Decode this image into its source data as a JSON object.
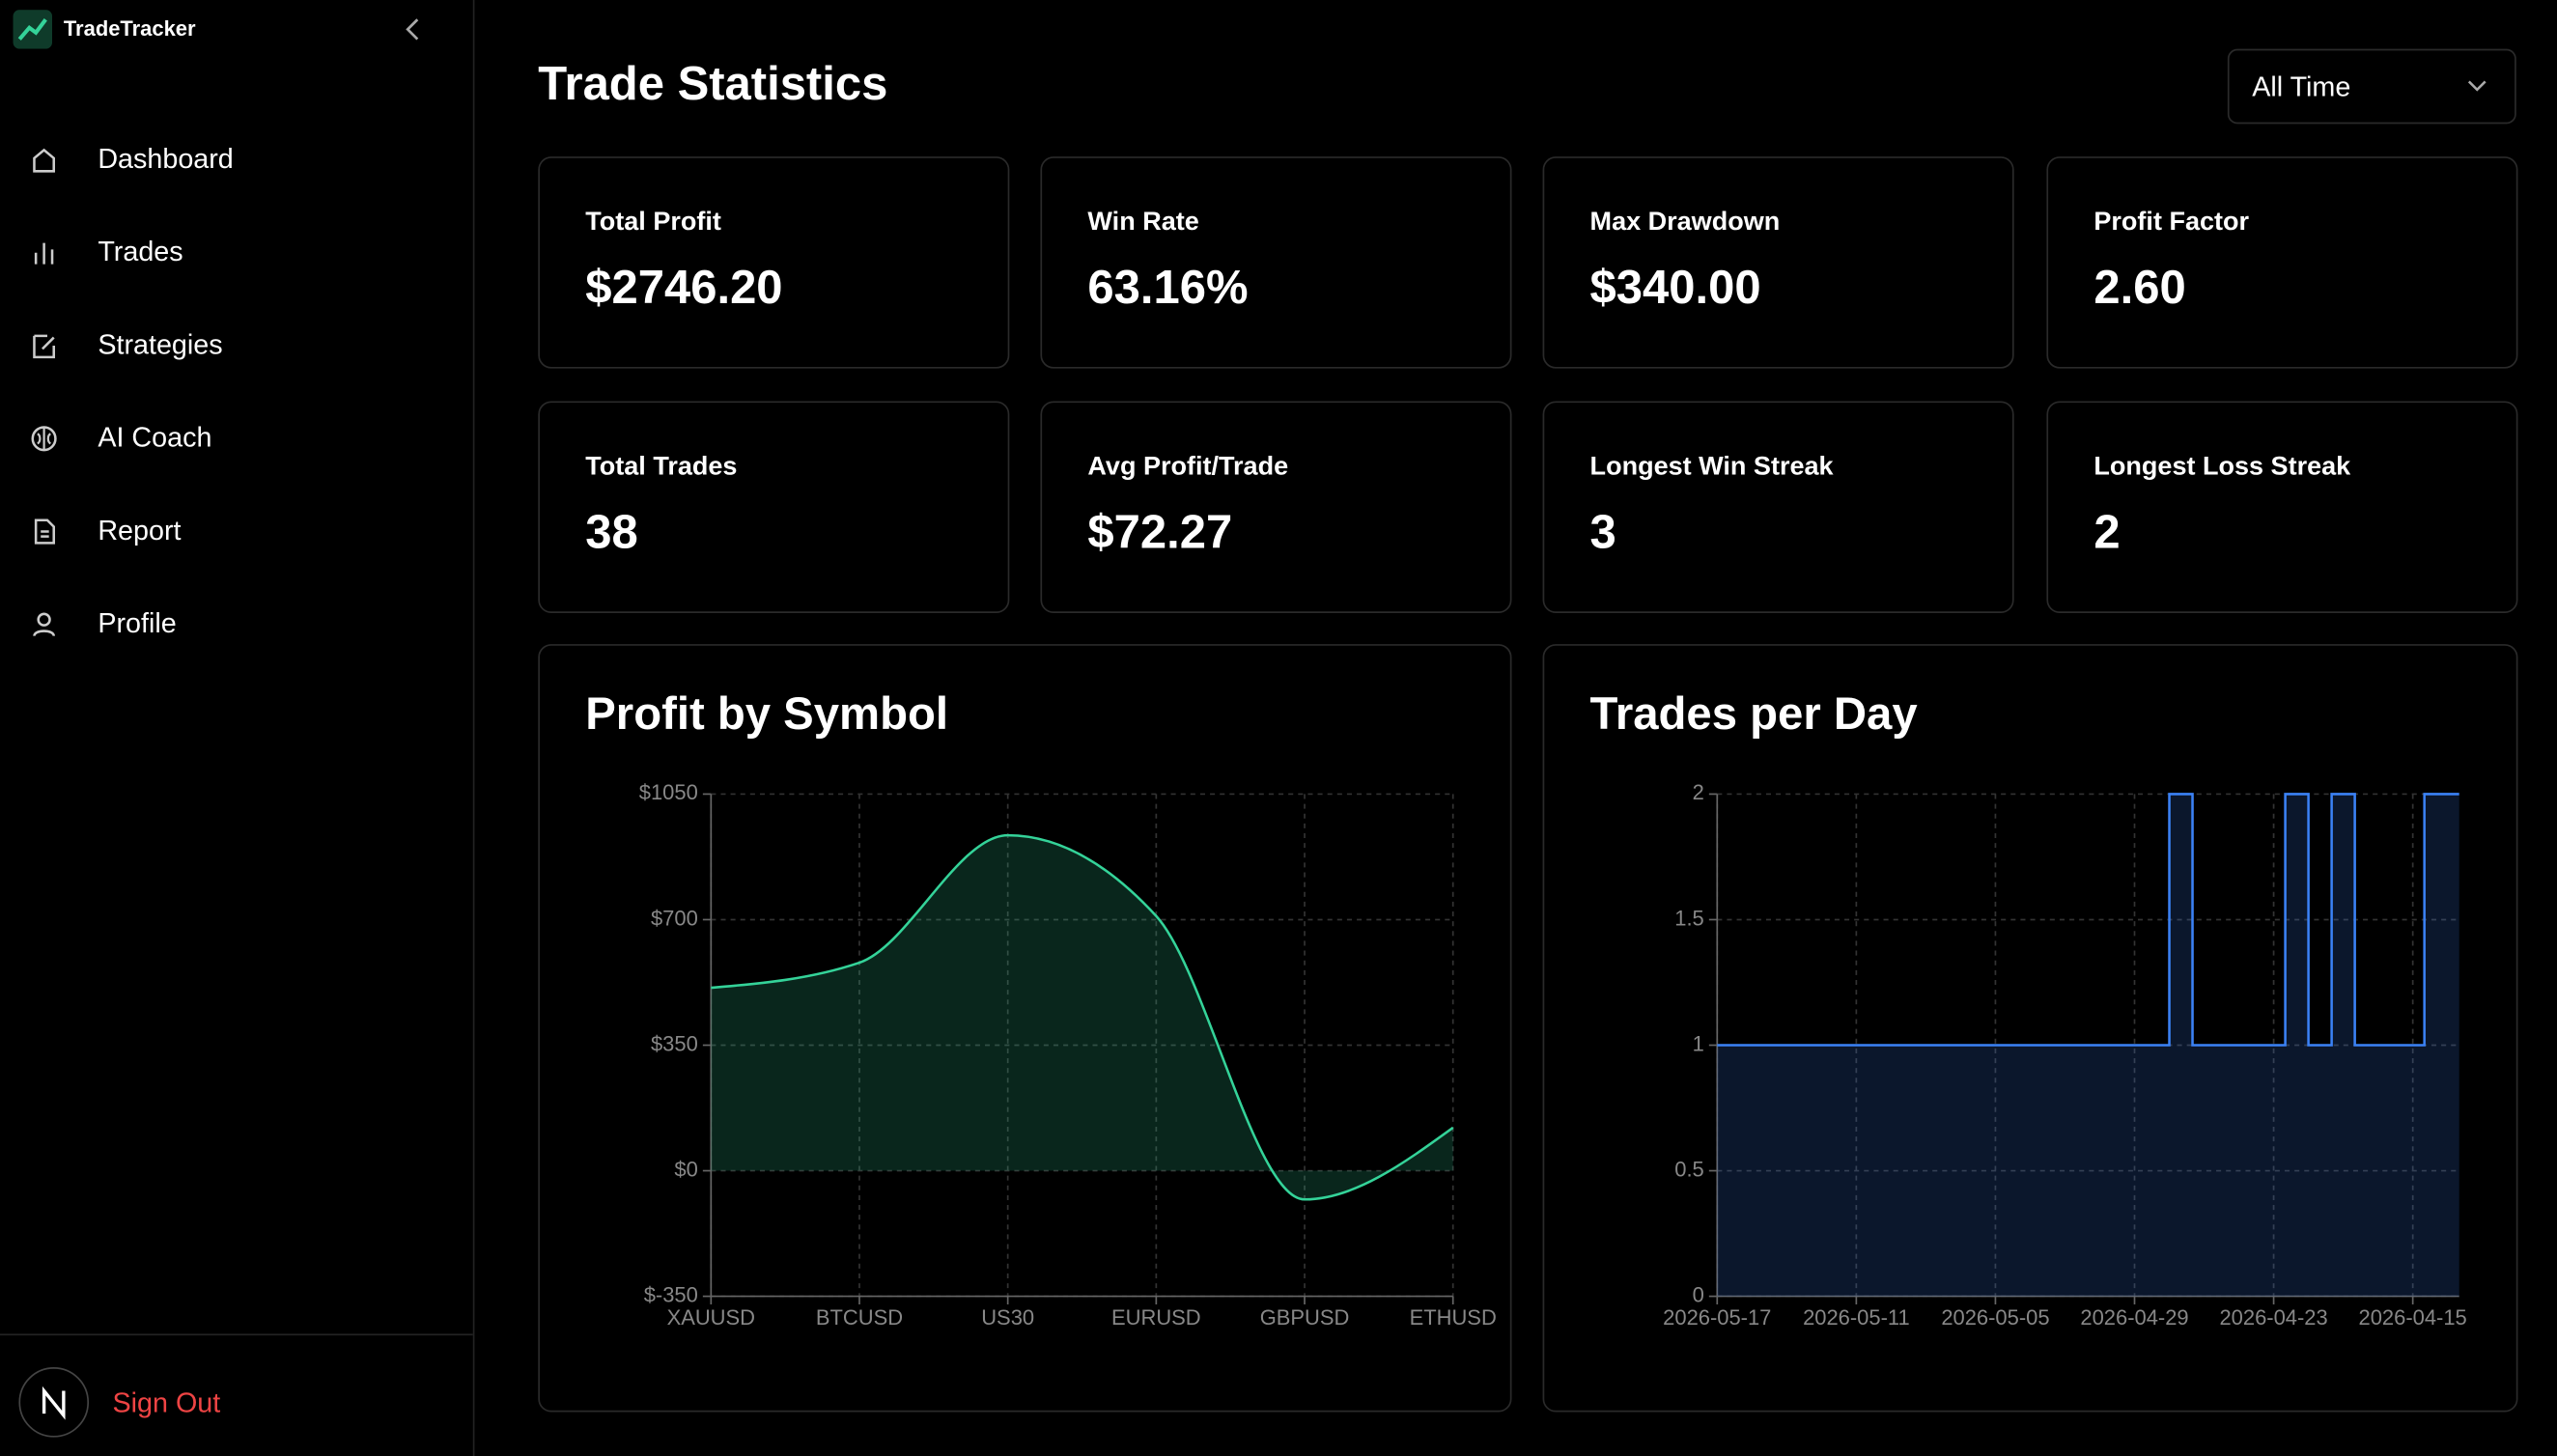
{
  "sidebar": {
    "app_name": "TradeTracker",
    "nav": [
      "Dashboard",
      "Trades",
      "Strategies",
      "AI Coach",
      "Report",
      "Profile"
    ],
    "sign_out": "Sign Out"
  },
  "header": {
    "title": "Trade Statistics",
    "period": "All Time"
  },
  "stats": [
    {
      "label": "Total Profit",
      "value": "$2746.20"
    },
    {
      "label": "Win Rate",
      "value": "63.16%"
    },
    {
      "label": "Max Drawdown",
      "value": "$340.00"
    },
    {
      "label": "Profit Factor",
      "value": "2.60"
    },
    {
      "label": "Total Trades",
      "value": "38"
    },
    {
      "label": "Avg Profit/Trade",
      "value": "$72.27"
    },
    {
      "label": "Longest Win Streak",
      "value": "3"
    },
    {
      "label": "Longest Loss Streak",
      "value": "2"
    }
  ],
  "chart_data": [
    {
      "type": "area",
      "title": "Profit by Symbol",
      "categories": [
        "XAUUSD",
        "BTCUSD",
        "US30",
        "EURUSD",
        "GBPUSD",
        "ETHUSD"
      ],
      "values": [
        510,
        580,
        935,
        710,
        -80,
        120
      ],
      "color": "#34d399",
      "ylim": [
        -350,
        1050
      ],
      "yticks": [
        {
          "value": -350,
          "label": "$-350"
        },
        {
          "value": 0,
          "label": "$0"
        },
        {
          "value": 350,
          "label": "$350"
        },
        {
          "value": 700,
          "label": "$700"
        },
        {
          "value": 1050,
          "label": "$1050"
        }
      ],
      "grid": true
    },
    {
      "type": "step",
      "title": "Trades per Day",
      "categories": [
        "2026-05-17",
        null,
        null,
        null,
        null,
        null,
        "2026-05-11",
        null,
        null,
        null,
        null,
        null,
        "2026-05-05",
        null,
        null,
        null,
        null,
        null,
        "2026-04-29",
        null,
        null,
        null,
        null,
        null,
        "2026-04-23",
        null,
        null,
        null,
        null,
        null,
        "2026-04-15",
        null,
        null
      ],
      "values": [
        1,
        1,
        1,
        1,
        1,
        1,
        1,
        1,
        1,
        1,
        1,
        1,
        1,
        1,
        1,
        1,
        1,
        1,
        1,
        1,
        2,
        1,
        1,
        1,
        1,
        2,
        1,
        2,
        1,
        1,
        1,
        2,
        2
      ],
      "color": "#3b82f6",
      "ylim": [
        0,
        2
      ],
      "yticks": [
        0,
        0.5,
        1,
        1.5,
        2
      ],
      "grid": true
    }
  ]
}
